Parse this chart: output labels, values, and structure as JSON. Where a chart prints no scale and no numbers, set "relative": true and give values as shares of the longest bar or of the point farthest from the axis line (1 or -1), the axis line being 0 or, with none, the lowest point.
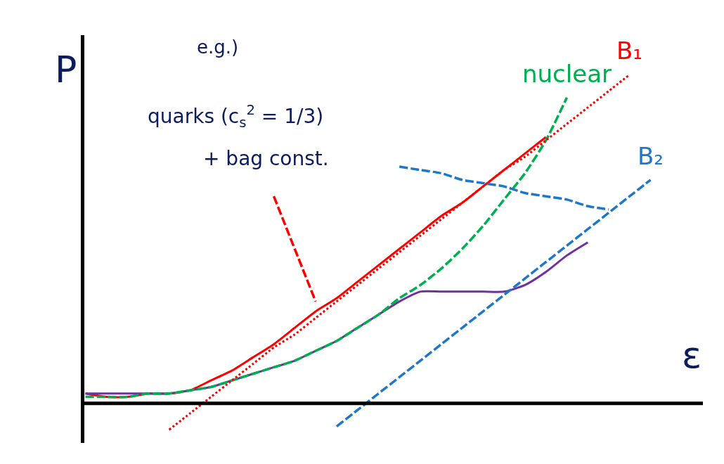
{
  "chart_data": {
    "type": "line",
    "relative": true,
    "xlabel": "ε",
    "ylabel": "P",
    "legend": false,
    "marker": "none",
    "categories": [
      null,
      null,
      null,
      null,
      null,
      null,
      null,
      null,
      null,
      null,
      null,
      null,
      null,
      null,
      null,
      null,
      null,
      null,
      null,
      null,
      null,
      null,
      null,
      null,
      null,
      null,
      null,
      null,
      null,
      null
    ],
    "annotations": [
      "e.g.)",
      "quarks (c$_{s}$$^{2}$ = 1/3)",
      "+ bag const."
    ],
    "series": [
      {
        "color": "#ff0000",
        "line_style": "solid",
        "values": [
          0.03,
          0.02,
          0.02,
          0.03,
          0.03,
          0.04,
          0.07,
          0.1,
          0.14,
          0.18,
          0.23,
          0.28,
          0.32,
          0.37,
          0.42,
          0.47,
          0.52,
          0.57,
          0.61,
          0.66,
          0.71,
          0.76,
          0.81,
          null,
          null,
          null,
          null,
          null,
          null,
          null
        ]
      },
      {
        "color": "#7030a0",
        "line_style": "solid",
        "values": [
          0.03,
          0.03,
          0.03,
          0.03,
          0.03,
          0.04,
          0.05,
          0.07,
          0.09,
          0.11,
          0.13,
          0.16,
          0.19,
          0.23,
          0.27,
          0.31,
          0.34,
          0.34,
          0.34,
          0.34,
          0.34,
          0.36,
          0.4,
          0.45,
          0.49,
          null,
          null,
          null,
          null,
          null
        ]
      },
      {
        "name": "nuclear",
        "color": "#00b050",
        "line_style": "dashed",
        "values": [
          0.02,
          0.02,
          0.02,
          0.03,
          0.03,
          0.04,
          0.05,
          0.07,
          0.09,
          0.11,
          0.13,
          0.16,
          0.19,
          0.23,
          0.27,
          0.32,
          0.36,
          0.41,
          0.47,
          0.54,
          0.62,
          0.7,
          0.8,
          0.93,
          null,
          null,
          null,
          null,
          null,
          null
        ]
      },
      {
        "name": "B₁",
        "color": "#ff0000",
        "line_style": "dotted",
        "values": [
          null,
          null,
          null,
          null,
          -0.08,
          -0.03,
          0.02,
          0.07,
          0.12,
          0.17,
          0.21,
          0.26,
          0.31,
          0.36,
          0.41,
          0.46,
          0.51,
          0.56,
          0.61,
          0.66,
          0.71,
          0.75,
          0.8,
          0.85,
          0.9,
          0.95,
          1.0,
          null,
          null,
          null
        ]
      },
      {
        "name": "B₂",
        "color": "#1f77c8",
        "line_style": "dashed",
        "values": [
          null,
          null,
          null,
          null,
          null,
          null,
          null,
          null,
          null,
          null,
          null,
          null,
          -0.07,
          -0.02,
          0.03,
          0.08,
          0.13,
          0.18,
          0.23,
          0.28,
          0.33,
          0.38,
          0.43,
          0.48,
          0.53,
          0.58,
          0.63,
          0.68,
          null,
          null
        ]
      },
      {
        "color": "#ff0000",
        "line_style": "dashed",
        "values": [
          null,
          null,
          null,
          null,
          null,
          null,
          null,
          null,
          null,
          0.63,
          0.47,
          0.31,
          null,
          null,
          null,
          null,
          null,
          null,
          null,
          null,
          null,
          null,
          null,
          null,
          null,
          null,
          null,
          null,
          null,
          null
        ]
      },
      {
        "color": "#1f77c8",
        "line_style": "dashed",
        "values": [
          null,
          null,
          null,
          null,
          null,
          null,
          null,
          null,
          null,
          null,
          null,
          null,
          null,
          null,
          null,
          0.72,
          0.71,
          0.7,
          0.68,
          0.67,
          0.66,
          0.64,
          0.63,
          0.62,
          0.6,
          0.59,
          null,
          null,
          null,
          null
        ]
      }
    ]
  }
}
